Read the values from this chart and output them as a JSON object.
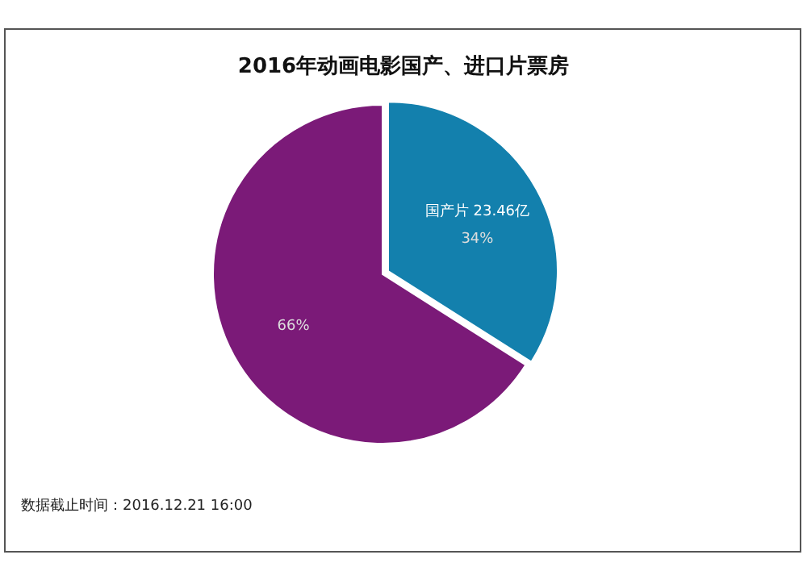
{
  "chart_data": {
    "type": "pie",
    "title": "2016年动画电影国产、进口片票房",
    "categories": [
      "国产片",
      null
    ],
    "values": [
      34,
      66
    ],
    "colors": [
      "#1380ad",
      "#7b1a78"
    ],
    "value_labels": [
      "34%",
      "66%"
    ],
    "annotations": [
      {
        "text": "23.46亿",
        "x": "国产片"
      },
      "数据截止时间：2016.12.21  16:00"
    ]
  }
}
